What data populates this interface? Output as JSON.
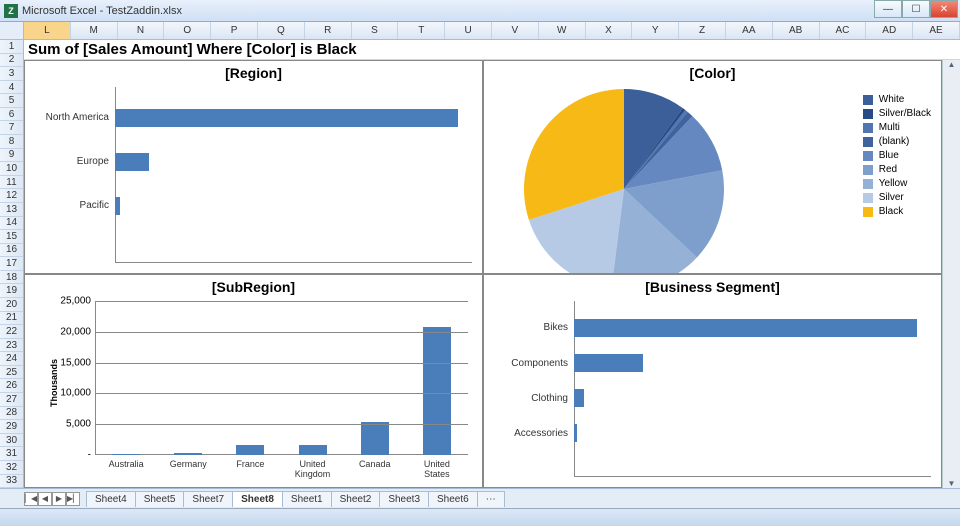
{
  "window": {
    "title": "Microsoft Excel - TestZaddin.xlsx"
  },
  "columns": [
    "L",
    "M",
    "N",
    "O",
    "P",
    "Q",
    "R",
    "S",
    "T",
    "U",
    "V",
    "W",
    "X",
    "Y",
    "Z",
    "AA",
    "AB",
    "AC",
    "AD",
    "AE"
  ],
  "selected_column": "L",
  "row_count": 33,
  "formula_row": "Sum of [Sales Amount] Where [Color] is Black",
  "tabs": [
    "Sheet4",
    "Sheet5",
    "Sheet7",
    "Sheet8",
    "Sheet1",
    "Sheet2",
    "Sheet3",
    "Sheet6"
  ],
  "active_tab": "Sheet8",
  "region_chart": {
    "title": "[Region]",
    "type": "bar-horizontal",
    "bar_color": "#4a7ebb",
    "categories": [
      "North America",
      "Europe",
      "Pacific"
    ],
    "values": [
      100,
      10,
      1.5
    ]
  },
  "color_chart": {
    "title": "[Color]",
    "type": "pie",
    "legend": [
      {
        "label": "White",
        "color": "#3c5e99"
      },
      {
        "label": "Silver/Black",
        "color": "#2a4a85"
      },
      {
        "label": "Multi",
        "color": "#5175b0"
      },
      {
        "label": "(blank)",
        "color": "#40639e"
      },
      {
        "label": "Blue",
        "color": "#6588c0"
      },
      {
        "label": "Red",
        "color": "#7e9ecb"
      },
      {
        "label": "Yellow",
        "color": "#95b1d6"
      },
      {
        "label": "Silver",
        "color": "#b7cae5"
      },
      {
        "label": "Black",
        "color": "#f7b916"
      }
    ],
    "slices": [
      {
        "color": "#3c5e99",
        "pct": 10
      },
      {
        "color": "#2a4a85",
        "pct": 0.5
      },
      {
        "color": "#5175b0",
        "pct": 0.5
      },
      {
        "color": "#40639e",
        "pct": 1
      },
      {
        "color": "#6588c0",
        "pct": 10
      },
      {
        "color": "#7e9ecb",
        "pct": 15
      },
      {
        "color": "#95b1d6",
        "pct": 15
      },
      {
        "color": "#b7cae5",
        "pct": 18
      },
      {
        "color": "#f7b916",
        "pct": 30
      }
    ]
  },
  "subregion_chart": {
    "title": "[SubRegion]",
    "type": "bar-vertical",
    "ylabel": "Thousands",
    "bar_color": "#4a7ebb",
    "ymax": 25000,
    "ytick_step": 5000,
    "yticks": [
      "-",
      "5,000",
      "10,000",
      "15,000",
      "20,000",
      "25,000"
    ],
    "categories": [
      "Australia",
      "Germany",
      "France",
      "United Kingdom",
      "Canada",
      "United States"
    ],
    "values": [
      200,
      400,
      1600,
      1600,
      5300,
      20800
    ]
  },
  "segment_chart": {
    "title": "[Business Segment]",
    "type": "bar-horizontal",
    "bar_color": "#4a7ebb",
    "categories": [
      "Bikes",
      "Components",
      "Clothing",
      "Accessories"
    ],
    "values": [
      100,
      20,
      3,
      1
    ]
  }
}
